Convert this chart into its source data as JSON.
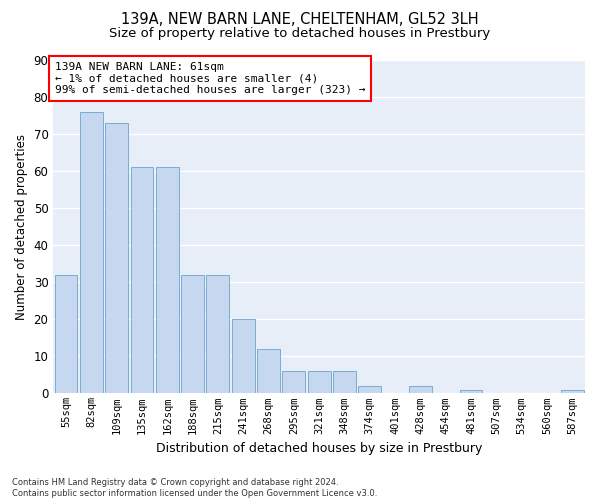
{
  "title": "139A, NEW BARN LANE, CHELTENHAM, GL52 3LH",
  "subtitle": "Size of property relative to detached houses in Prestbury",
  "xlabel": "Distribution of detached houses by size in Prestbury",
  "ylabel": "Number of detached properties",
  "categories": [
    "55sqm",
    "82sqm",
    "109sqm",
    "135sqm",
    "162sqm",
    "188sqm",
    "215sqm",
    "241sqm",
    "268sqm",
    "295sqm",
    "321sqm",
    "348sqm",
    "374sqm",
    "401sqm",
    "428sqm",
    "454sqm",
    "481sqm",
    "507sqm",
    "534sqm",
    "560sqm",
    "587sqm"
  ],
  "values": [
    32,
    76,
    73,
    61,
    61,
    32,
    32,
    20,
    12,
    6,
    6,
    6,
    2,
    0,
    2,
    0,
    1,
    0,
    0,
    0,
    1
  ],
  "bar_color": "#c5d8ef",
  "bar_edge_color": "#7aadd4",
  "annotation_text": "139A NEW BARN LANE: 61sqm\n← 1% of detached houses are smaller (4)\n99% of semi-detached houses are larger (323) →",
  "background_color": "#e8eef8",
  "ylim": [
    0,
    90
  ],
  "yticks": [
    0,
    10,
    20,
    30,
    40,
    50,
    60,
    70,
    80,
    90
  ],
  "grid_color": "#ffffff",
  "footnote": "Contains HM Land Registry data © Crown copyright and database right 2024.\nContains public sector information licensed under the Open Government Licence v3.0.",
  "title_fontsize": 10.5,
  "subtitle_fontsize": 9.5,
  "ylabel_fontsize": 8.5,
  "xlabel_fontsize": 9,
  "ytick_fontsize": 8.5,
  "xtick_fontsize": 7.5
}
